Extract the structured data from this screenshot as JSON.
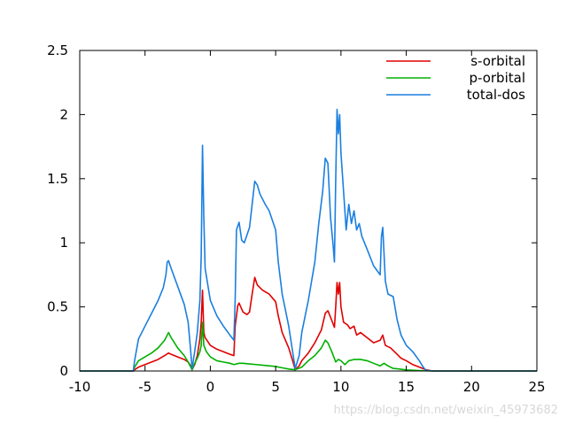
{
  "chart_data": {
    "type": "line",
    "xlim": [
      -10,
      25
    ],
    "ylim": [
      0,
      2.5
    ],
    "x_ticks": [
      -10,
      -5,
      0,
      5,
      10,
      15,
      20,
      25
    ],
    "x_tick_labels": [
      "-10",
      "-5",
      "0",
      "5",
      "10",
      "15",
      "20",
      "25"
    ],
    "y_ticks": [
      0,
      0.5,
      1,
      1.5,
      2,
      2.5
    ],
    "y_tick_labels": [
      "0",
      "0.5",
      "1",
      "1.5",
      "2",
      "2.5"
    ],
    "grid": false,
    "legend_position": "top-right",
    "series": [
      {
        "name": "s-orbital",
        "color": "#e00000",
        "points": [
          [
            -10,
            0
          ],
          [
            -5.9,
            0
          ],
          [
            -5.8,
            0.01
          ],
          [
            -5.5,
            0.03
          ],
          [
            -5,
            0.05
          ],
          [
            -4.5,
            0.07
          ],
          [
            -4,
            0.09
          ],
          [
            -3.5,
            0.12
          ],
          [
            -3.2,
            0.14
          ],
          [
            -3,
            0.13
          ],
          [
            -2.5,
            0.11
          ],
          [
            -2,
            0.09
          ],
          [
            -1.7,
            0.07
          ],
          [
            -1.5,
            0.04
          ],
          [
            -1.4,
            0.01
          ],
          [
            -1.2,
            0.05
          ],
          [
            -1,
            0.12
          ],
          [
            -0.8,
            0.25
          ],
          [
            -0.7,
            0.38
          ],
          [
            -0.6,
            0.63
          ],
          [
            -0.5,
            0.3
          ],
          [
            -0.4,
            0.26
          ],
          [
            0,
            0.2
          ],
          [
            0.5,
            0.17
          ],
          [
            1,
            0.15
          ],
          [
            1.5,
            0.13
          ],
          [
            1.8,
            0.12
          ],
          [
            1.9,
            0.35
          ],
          [
            2.1,
            0.51
          ],
          [
            2.2,
            0.53
          ],
          [
            2.5,
            0.46
          ],
          [
            2.8,
            0.44
          ],
          [
            3,
            0.46
          ],
          [
            3.2,
            0.6
          ],
          [
            3.4,
            0.73
          ],
          [
            3.6,
            0.67
          ],
          [
            4,
            0.63
          ],
          [
            4.5,
            0.6
          ],
          [
            5,
            0.54
          ],
          [
            5.2,
            0.43
          ],
          [
            5.5,
            0.3
          ],
          [
            6,
            0.18
          ],
          [
            6.3,
            0.08
          ],
          [
            6.5,
            0.01
          ],
          [
            6.8,
            0.04
          ],
          [
            7,
            0.08
          ],
          [
            7.5,
            0.14
          ],
          [
            8,
            0.22
          ],
          [
            8.5,
            0.32
          ],
          [
            8.8,
            0.45
          ],
          [
            9,
            0.47
          ],
          [
            9.2,
            0.42
          ],
          [
            9.5,
            0.34
          ],
          [
            9.6,
            0.5
          ],
          [
            9.7,
            0.69
          ],
          [
            9.8,
            0.6
          ],
          [
            9.9,
            0.69
          ],
          [
            10,
            0.5
          ],
          [
            10.2,
            0.38
          ],
          [
            10.5,
            0.36
          ],
          [
            10.7,
            0.33
          ],
          [
            11,
            0.35
          ],
          [
            11.2,
            0.28
          ],
          [
            11.5,
            0.3
          ],
          [
            12,
            0.26
          ],
          [
            12.5,
            0.22
          ],
          [
            13,
            0.24
          ],
          [
            13.2,
            0.28
          ],
          [
            13.4,
            0.2
          ],
          [
            13.8,
            0.18
          ],
          [
            14.2,
            0.14
          ],
          [
            14.6,
            0.1
          ],
          [
            15,
            0.08
          ],
          [
            15.5,
            0.05
          ],
          [
            16,
            0.03
          ],
          [
            16.5,
            0.01
          ],
          [
            17,
            0
          ],
          [
            25,
            0
          ]
        ]
      },
      {
        "name": "p-orbital",
        "color": "#00b000",
        "points": [
          [
            -10,
            0
          ],
          [
            -5.9,
            0
          ],
          [
            -5.8,
            0.03
          ],
          [
            -5.5,
            0.08
          ],
          [
            -5,
            0.11
          ],
          [
            -4.5,
            0.14
          ],
          [
            -4,
            0.18
          ],
          [
            -3.5,
            0.24
          ],
          [
            -3.2,
            0.3
          ],
          [
            -3,
            0.26
          ],
          [
            -2.5,
            0.18
          ],
          [
            -2,
            0.12
          ],
          [
            -1.7,
            0.07
          ],
          [
            -1.5,
            0.03
          ],
          [
            -1.4,
            0.01
          ],
          [
            -1.2,
            0.06
          ],
          [
            -1,
            0.1
          ],
          [
            -0.8,
            0.15
          ],
          [
            -0.7,
            0.2
          ],
          [
            -0.6,
            0.38
          ],
          [
            -0.5,
            0.2
          ],
          [
            -0.3,
            0.15
          ],
          [
            0,
            0.11
          ],
          [
            0.5,
            0.08
          ],
          [
            1,
            0.07
          ],
          [
            1.5,
            0.06
          ],
          [
            1.8,
            0.05
          ],
          [
            2.2,
            0.06
          ],
          [
            2.5,
            0.06
          ],
          [
            3,
            0.055
          ],
          [
            3.5,
            0.05
          ],
          [
            4,
            0.045
          ],
          [
            4.5,
            0.04
          ],
          [
            5,
            0.035
          ],
          [
            5.5,
            0.025
          ],
          [
            6,
            0.015
          ],
          [
            6.5,
            0.01
          ],
          [
            7,
            0.03
          ],
          [
            7.5,
            0.08
          ],
          [
            8,
            0.12
          ],
          [
            8.5,
            0.18
          ],
          [
            8.8,
            0.24
          ],
          [
            9,
            0.22
          ],
          [
            9.3,
            0.15
          ],
          [
            9.6,
            0.07
          ],
          [
            9.8,
            0.09
          ],
          [
            10,
            0.08
          ],
          [
            10.3,
            0.05
          ],
          [
            10.6,
            0.08
          ],
          [
            11,
            0.09
          ],
          [
            11.5,
            0.09
          ],
          [
            12,
            0.08
          ],
          [
            12.5,
            0.06
          ],
          [
            13,
            0.04
          ],
          [
            13.3,
            0.06
          ],
          [
            13.6,
            0.04
          ],
          [
            14,
            0.02
          ],
          [
            14.5,
            0.015
          ],
          [
            15,
            0.008
          ],
          [
            16,
            0.003
          ],
          [
            17,
            0
          ],
          [
            25,
            0
          ]
        ]
      },
      {
        "name": "total-dos",
        "color": "#1a7fe0",
        "points": [
          [
            -10,
            0
          ],
          [
            -5.9,
            0
          ],
          [
            -5.8,
            0.08
          ],
          [
            -5.5,
            0.25
          ],
          [
            -5,
            0.35
          ],
          [
            -4.5,
            0.45
          ],
          [
            -4,
            0.55
          ],
          [
            -3.6,
            0.65
          ],
          [
            -3.4,
            0.75
          ],
          [
            -3.3,
            0.85
          ],
          [
            -3.2,
            0.86
          ],
          [
            -3,
            0.8
          ],
          [
            -2.5,
            0.66
          ],
          [
            -2,
            0.52
          ],
          [
            -1.7,
            0.38
          ],
          [
            -1.5,
            0.15
          ],
          [
            -1.4,
            0.02
          ],
          [
            -1.2,
            0.15
          ],
          [
            -1,
            0.3
          ],
          [
            -0.8,
            0.55
          ],
          [
            -0.7,
            0.9
          ],
          [
            -0.6,
            1.76
          ],
          [
            -0.5,
            1.2
          ],
          [
            -0.4,
            0.8
          ],
          [
            0,
            0.55
          ],
          [
            0.5,
            0.43
          ],
          [
            1,
            0.35
          ],
          [
            1.5,
            0.28
          ],
          [
            1.8,
            0.24
          ],
          [
            1.9,
            0.55
          ],
          [
            2,
            1.1
          ],
          [
            2.2,
            1.16
          ],
          [
            2.4,
            1.02
          ],
          [
            2.6,
            1.0
          ],
          [
            3,
            1.12
          ],
          [
            3.2,
            1.3
          ],
          [
            3.4,
            1.48
          ],
          [
            3.6,
            1.45
          ],
          [
            3.8,
            1.38
          ],
          [
            4.2,
            1.3
          ],
          [
            4.5,
            1.25
          ],
          [
            5,
            1.1
          ],
          [
            5.2,
            0.85
          ],
          [
            5.5,
            0.6
          ],
          [
            6,
            0.35
          ],
          [
            6.3,
            0.15
          ],
          [
            6.5,
            0.02
          ],
          [
            6.8,
            0.12
          ],
          [
            7,
            0.3
          ],
          [
            7.5,
            0.55
          ],
          [
            8,
            0.85
          ],
          [
            8.3,
            1.15
          ],
          [
            8.6,
            1.4
          ],
          [
            8.8,
            1.66
          ],
          [
            9,
            1.62
          ],
          [
            9.2,
            1.2
          ],
          [
            9.4,
            0.98
          ],
          [
            9.5,
            0.85
          ],
          [
            9.6,
            1.5
          ],
          [
            9.7,
            2.04
          ],
          [
            9.8,
            1.85
          ],
          [
            9.9,
            2.0
          ],
          [
            10,
            1.7
          ],
          [
            10.2,
            1.4
          ],
          [
            10.4,
            1.1
          ],
          [
            10.6,
            1.3
          ],
          [
            10.8,
            1.15
          ],
          [
            11,
            1.25
          ],
          [
            11.2,
            1.1
          ],
          [
            11.4,
            1.15
          ],
          [
            11.6,
            1.05
          ],
          [
            12,
            0.95
          ],
          [
            12.5,
            0.82
          ],
          [
            13,
            0.75
          ],
          [
            13.1,
            1.05
          ],
          [
            13.2,
            1.12
          ],
          [
            13.4,
            0.7
          ],
          [
            13.6,
            0.6
          ],
          [
            14,
            0.58
          ],
          [
            14.3,
            0.4
          ],
          [
            14.6,
            0.28
          ],
          [
            15,
            0.2
          ],
          [
            15.5,
            0.15
          ],
          [
            16,
            0.08
          ],
          [
            16.3,
            0.03
          ],
          [
            16.5,
            0.005
          ],
          [
            17,
            0
          ],
          [
            25,
            0
          ]
        ]
      }
    ]
  },
  "watermark": "https://blog.csdn.net/weixin_45973682"
}
